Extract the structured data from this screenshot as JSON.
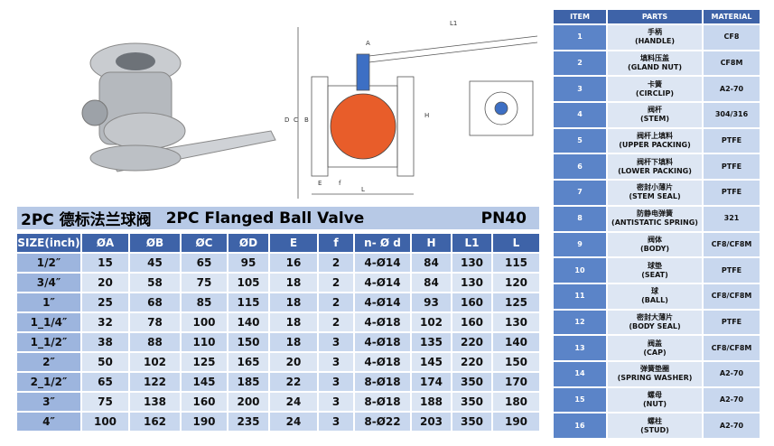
{
  "drawing": {
    "labels": [
      "L1",
      "A",
      "L",
      "D",
      "C",
      "B",
      "E",
      "f",
      "H"
    ]
  },
  "title": {
    "cn": "2PC 德标法兰球阀",
    "en": "2PC Flanged Ball Valve",
    "pressure": "PN40"
  },
  "dims": {
    "header": [
      "SIZE(inch)",
      "ØA",
      "ØB",
      "ØC",
      "ØD",
      "E",
      "f",
      "n- Ø d",
      "H",
      "L1",
      "L"
    ],
    "rows": [
      [
        "1/2″",
        "15",
        "45",
        "65",
        "95",
        "16",
        "2",
        "4-Ø14",
        "84",
        "130",
        "115"
      ],
      [
        "3/4″",
        "20",
        "58",
        "75",
        "105",
        "18",
        "2",
        "4-Ø14",
        "84",
        "130",
        "120"
      ],
      [
        "1″",
        "25",
        "68",
        "85",
        "115",
        "18",
        "2",
        "4-Ø14",
        "93",
        "160",
        "125"
      ],
      [
        "1_1/4″",
        "32",
        "78",
        "100",
        "140",
        "18",
        "2",
        "4-Ø18",
        "102",
        "160",
        "130"
      ],
      [
        "1_1/2″",
        "38",
        "88",
        "110",
        "150",
        "18",
        "3",
        "4-Ø18",
        "135",
        "220",
        "140"
      ],
      [
        "2″",
        "50",
        "102",
        "125",
        "165",
        "20",
        "3",
        "4-Ø18",
        "145",
        "220",
        "150"
      ],
      [
        "2_1/2″",
        "65",
        "122",
        "145",
        "185",
        "22",
        "3",
        "8-Ø18",
        "174",
        "350",
        "170"
      ],
      [
        "3″",
        "75",
        "138",
        "160",
        "200",
        "24",
        "3",
        "8-Ø18",
        "188",
        "350",
        "180"
      ],
      [
        "4″",
        "100",
        "162",
        "190",
        "235",
        "24",
        "3",
        "8-Ø22",
        "203",
        "350",
        "190"
      ]
    ]
  },
  "parts": {
    "header": [
      "ITEM",
      "PARTS",
      "MATERIAL"
    ],
    "rows": [
      [
        "1",
        "手柄",
        "(HANDLE)",
        "CF8"
      ],
      [
        "2",
        "填料压盖",
        "(GLAND NUT)",
        "CF8M"
      ],
      [
        "3",
        "卡簧",
        "(CIRCLIP)",
        "A2-70"
      ],
      [
        "4",
        "阀杆",
        "(STEM)",
        "304/316"
      ],
      [
        "5",
        "阀杆上填料",
        "(UPPER PACKING)",
        "PTFE"
      ],
      [
        "6",
        "阀杆下填料",
        "(LOWER PACKING)",
        "PTFE"
      ],
      [
        "7",
        "密封小薄片",
        "(STEM SEAL)",
        "PTFE"
      ],
      [
        "8",
        "防静电弹簧",
        "(ANTISTATIC SPRING)",
        "321"
      ],
      [
        "9",
        "阀体",
        "(BODY)",
        "CF8/CF8M"
      ],
      [
        "10",
        "球垫",
        "(SEAT)",
        "PTFE"
      ],
      [
        "11",
        "球",
        "(BALL)",
        "CF8/CF8M"
      ],
      [
        "12",
        "密封大薄片",
        "(BODY SEAL)",
        "PTFE"
      ],
      [
        "13",
        "阀盖",
        "(CAP)",
        "CF8/CF8M"
      ],
      [
        "14",
        "弹簧垫圈",
        "(SPRING WASHER)",
        "A2-70"
      ],
      [
        "15",
        "螺母",
        "(NUT)",
        "A2-70"
      ],
      [
        "16",
        "螺柱",
        "(STUD)",
        "A2-70"
      ]
    ]
  }
}
